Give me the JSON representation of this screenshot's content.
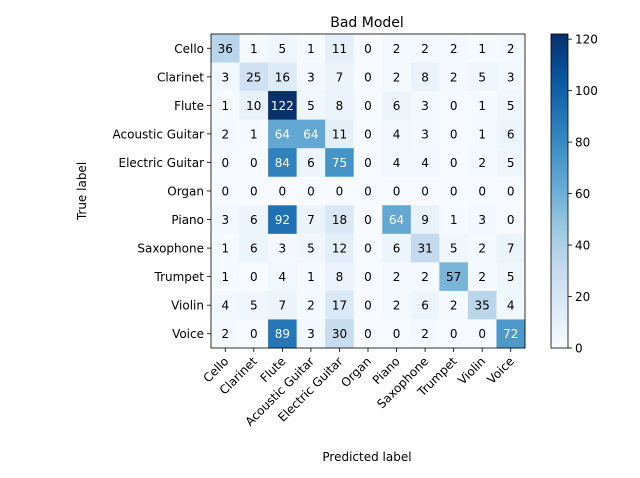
{
  "chart_data": {
    "type": "heatmap",
    "title": "Bad Model",
    "xlabel": "Predicted label",
    "ylabel": "True label",
    "categories": [
      "Cello",
      "Clarinet",
      "Flute",
      "Acoustic Guitar",
      "Electric Guitar",
      "Organ",
      "Piano",
      "Saxophone",
      "Trumpet",
      "Violin",
      "Voice"
    ],
    "values": [
      [
        36,
        1,
        5,
        1,
        11,
        0,
        2,
        2,
        2,
        1,
        2
      ],
      [
        3,
        25,
        16,
        3,
        7,
        0,
        2,
        8,
        2,
        5,
        3
      ],
      [
        1,
        10,
        122,
        5,
        8,
        0,
        6,
        3,
        0,
        1,
        5
      ],
      [
        2,
        1,
        64,
        64,
        11,
        0,
        4,
        3,
        0,
        1,
        6
      ],
      [
        0,
        0,
        84,
        6,
        75,
        0,
        4,
        4,
        0,
        2,
        5
      ],
      [
        0,
        0,
        0,
        0,
        0,
        0,
        0,
        0,
        0,
        0,
        0
      ],
      [
        3,
        6,
        92,
        7,
        18,
        0,
        64,
        9,
        1,
        3,
        0
      ],
      [
        1,
        6,
        3,
        5,
        12,
        0,
        6,
        31,
        5,
        2,
        7
      ],
      [
        1,
        0,
        4,
        1,
        8,
        0,
        2,
        2,
        57,
        2,
        5
      ],
      [
        4,
        5,
        7,
        2,
        17,
        0,
        2,
        6,
        2,
        35,
        4
      ],
      [
        2,
        0,
        89,
        3,
        30,
        0,
        0,
        2,
        0,
        0,
        72
      ]
    ],
    "colormap": "Blues",
    "vmin": 0,
    "vmax": 122,
    "colorbar_ticks": [
      0,
      20,
      40,
      60,
      80,
      100,
      120
    ]
  }
}
